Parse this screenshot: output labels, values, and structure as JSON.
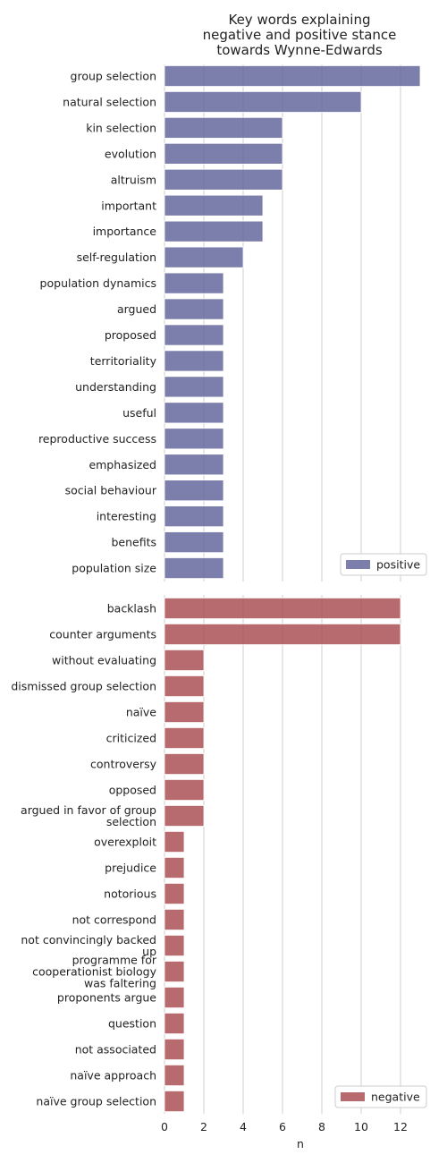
{
  "title_lines": [
    "Key words explaining",
    "negative and positive stance",
    "towards Wynne-Edwards"
  ],
  "chart_data": {
    "type": "bar",
    "orientation": "horizontal",
    "xlabel": "n",
    "xlim": [
      0,
      13
    ],
    "x_ticks": [
      "0",
      "2",
      "4",
      "6",
      "8",
      "10",
      "12"
    ],
    "grid": "vertical",
    "panels": [
      {
        "series_name": "positive",
        "color": "#5f6399",
        "legend_position": "lower-right",
        "categories": [
          "group selection",
          "natural selection",
          "kin selection",
          "evolution",
          "altruism",
          "important",
          "importance",
          "self-regulation",
          "population dynamics",
          "argued",
          "proposed",
          "territoriality",
          "understanding",
          "useful",
          "reproductive success",
          "emphasized",
          "social behaviour",
          "interesting",
          "benefits",
          "population size"
        ],
        "values": [
          13,
          10,
          6,
          6,
          6,
          5,
          5,
          4,
          3,
          3,
          3,
          3,
          3,
          3,
          3,
          3,
          3,
          3,
          3,
          3
        ]
      },
      {
        "series_name": "negative",
        "color": "#a84b4f",
        "legend_position": "lower-right",
        "categories": [
          "backlash",
          "counter arguments",
          "without evaluating",
          "dismissed group selection",
          "naïve",
          "criticized",
          "controversy",
          "opposed",
          "argued in favor of group selection",
          "overexploit",
          "prejudice",
          "notorious",
          "not correspond",
          "not convincingly backed up",
          "programme for cooperationist biology was faltering",
          "proponents argue",
          "question",
          "not associated",
          "naïve approach",
          "naïve group selection"
        ],
        "labels": [
          [
            "backlash"
          ],
          [
            "counter arguments"
          ],
          [
            "without evaluating"
          ],
          [
            "dismissed group selection"
          ],
          [
            "naïve"
          ],
          [
            "criticized"
          ],
          [
            "controversy"
          ],
          [
            "opposed"
          ],
          [
            "argued in favor of group",
            "selection"
          ],
          [
            "overexploit"
          ],
          [
            "prejudice"
          ],
          [
            "notorious"
          ],
          [
            "not correspond"
          ],
          [
            "not convincingly backed",
            "up"
          ],
          [
            "programme for",
            "cooperationist biology",
            "was faltering"
          ],
          [
            "proponents argue"
          ],
          [
            "question"
          ],
          [
            "not associated"
          ],
          [
            "naïve approach"
          ],
          [
            "naïve group selection"
          ]
        ],
        "values": [
          12,
          12,
          2,
          2,
          2,
          2,
          2,
          2,
          2,
          1,
          1,
          1,
          1,
          1,
          1,
          1,
          1,
          1,
          1,
          1
        ]
      }
    ]
  }
}
